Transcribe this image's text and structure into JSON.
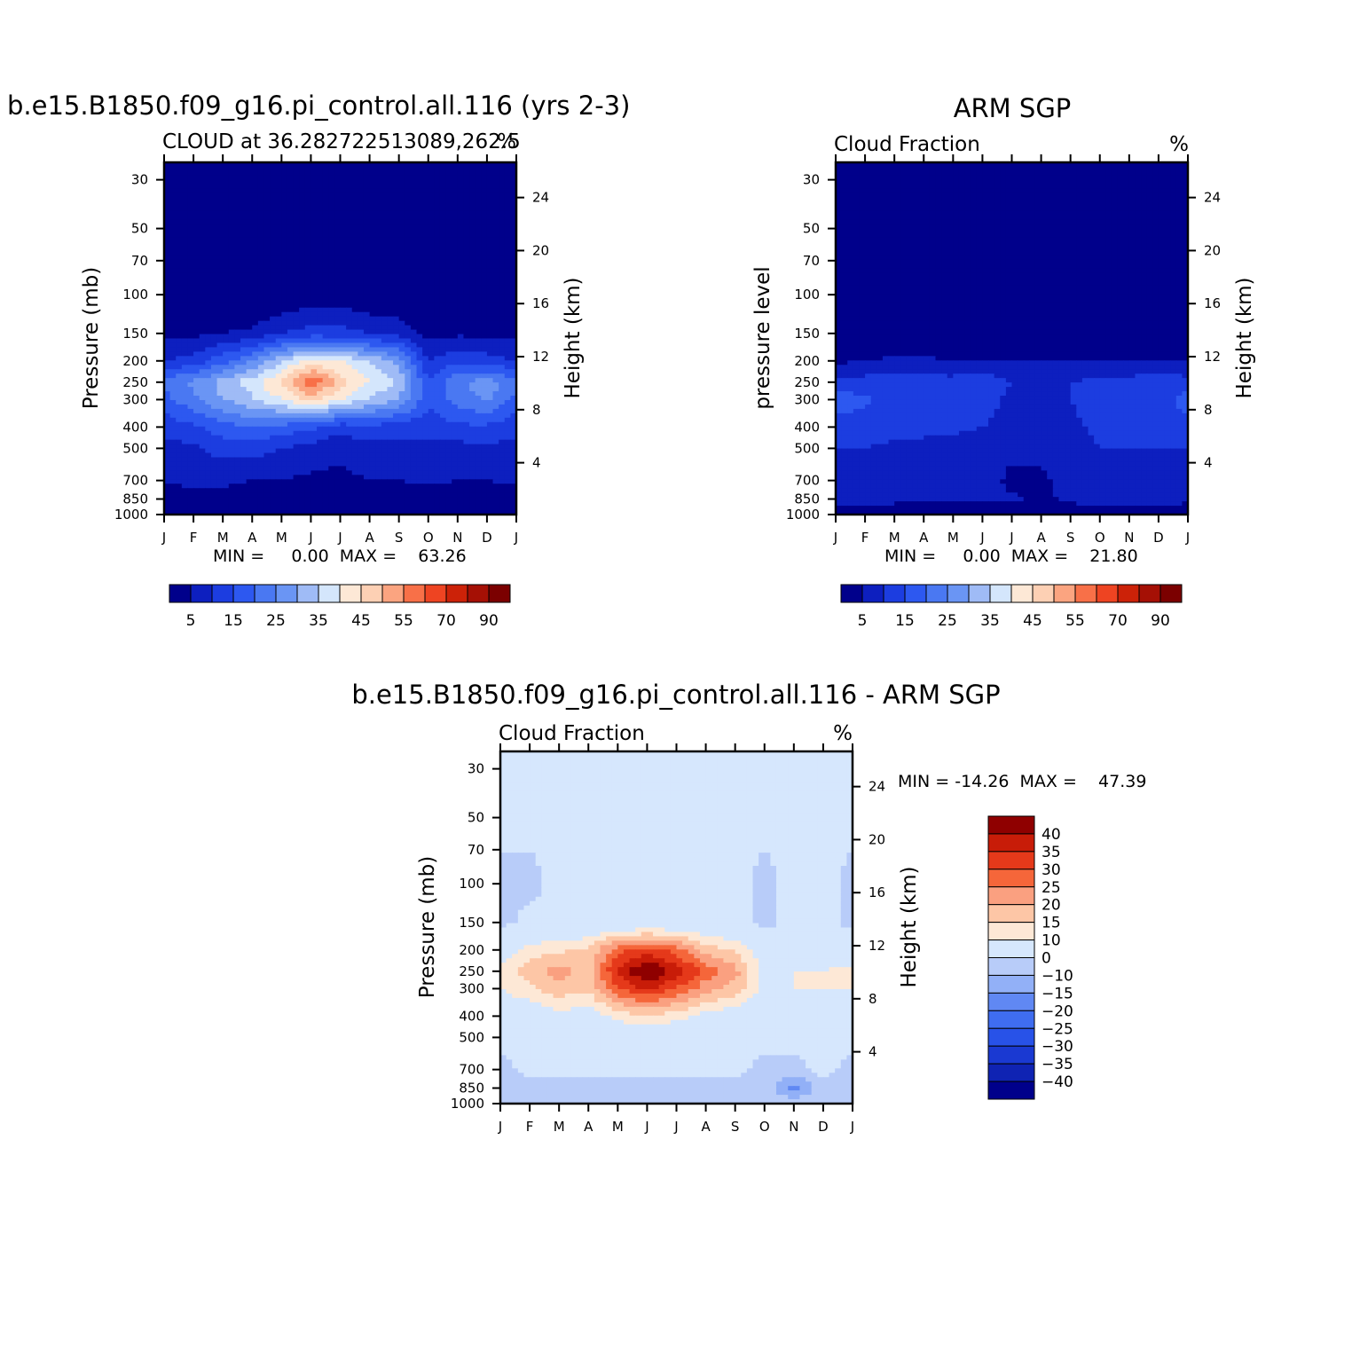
{
  "colors": {
    "cloud_palette": [
      "#00008b",
      "#0d1fbf",
      "#1c3de0",
      "#2d58f0",
      "#4a78f2",
      "#6a95f4",
      "#9fbbf6",
      "#d4e6fc",
      "#fde8d6",
      "#fdd0b4",
      "#fba480",
      "#f87048",
      "#ee4422",
      "#cc2208",
      "#a51005",
      "#7b0000"
    ],
    "diff_palette": [
      "#00008b",
      "#0f23b3",
      "#1a39d2",
      "#2852e8",
      "#3f6df0",
      "#6088f3",
      "#92b0f7",
      "#b8ccf9",
      "#d6e7fd",
      "#fde8d6",
      "#fdc6a6",
      "#faa080",
      "#f5663a",
      "#e5391a",
      "#c81c08",
      "#8f0000"
    ],
    "background": "#00008b"
  },
  "charts": {
    "model": {
      "title": "b.e15.B1850.f09_g16.pi_control.all.116 (yrs 2-3)",
      "subtitle_left": "CLOUD at 36.282722513089,262.5",
      "subtitle_right": "%",
      "ylabel_left": "Pressure (mb)",
      "ylabel_right": "Height (km)",
      "stats": "MIN =     0.00  MAX =    63.26"
    },
    "obs": {
      "title": "ARM SGP",
      "subtitle_left": "Cloud Fraction",
      "subtitle_right": "%",
      "ylabel_left": "pressure level",
      "ylabel_right": "Height (km)",
      "stats": "MIN =     0.00  MAX =    21.80"
    },
    "diff": {
      "title": "b.e15.B1850.f09_g16.pi_control.all.116 - ARM SGP",
      "subtitle_left": "Cloud Fraction",
      "subtitle_right": "%",
      "ylabel_left": "Pressure (mb)",
      "ylabel_right": "Height (km)",
      "stats": "MIN = -14.26  MAX =    47.39"
    }
  },
  "chart_data": [
    {
      "type": "heatmap",
      "title": "b.e15.B1850.f09_g16.pi_control.all.116 (yrs 2-3)",
      "subtitle": "CLOUD at 36.282722513089,262.5",
      "units": "%",
      "xlabel": "",
      "ylabel": "Pressure (mb)",
      "ylabel_right": "Height (km)",
      "x": [
        "J",
        "F",
        "M",
        "A",
        "M",
        "J",
        "J",
        "A",
        "S",
        "O",
        "N",
        "D",
        "J"
      ],
      "pressure_ticks": [
        30,
        50,
        70,
        100,
        150,
        200,
        250,
        300,
        400,
        500,
        700,
        850,
        1000
      ],
      "height_ticks": [
        24,
        20,
        16,
        12,
        8,
        4
      ],
      "y_pressure": [
        30,
        50,
        100,
        150,
        200,
        250,
        300,
        400,
        500,
        700,
        850,
        1000
      ],
      "values": [
        [
          0,
          0,
          0,
          0,
          0,
          0,
          0,
          0,
          0,
          0,
          0,
          0,
          0
        ],
        [
          0,
          0,
          0,
          0,
          0,
          0,
          0,
          0,
          0,
          0,
          0,
          0,
          0
        ],
        [
          0,
          0,
          0,
          0,
          0,
          2,
          2,
          0,
          0,
          0,
          0,
          0,
          0
        ],
        [
          4,
          4,
          5,
          6,
          10,
          12,
          12,
          10,
          8,
          3,
          4,
          4,
          4
        ],
        [
          10,
          12,
          18,
          25,
          34,
          42,
          40,
          34,
          28,
          10,
          14,
          12,
          10
        ],
        [
          22,
          26,
          32,
          38,
          46,
          60,
          48,
          40,
          34,
          16,
          24,
          28,
          22
        ],
        [
          18,
          24,
          30,
          34,
          40,
          46,
          40,
          34,
          30,
          16,
          22,
          26,
          18
        ],
        [
          12,
          14,
          18,
          20,
          18,
          16,
          12,
          14,
          12,
          12,
          14,
          14,
          12
        ],
        [
          8,
          9,
          12,
          12,
          10,
          8,
          6,
          8,
          8,
          8,
          8,
          9,
          8
        ],
        [
          6,
          6,
          6,
          5,
          5,
          4,
          4,
          5,
          5,
          6,
          5,
          5,
          6
        ],
        [
          2,
          3,
          3,
          2,
          2,
          2,
          1,
          2,
          2,
          2,
          2,
          2,
          2
        ],
        [
          1,
          1,
          1,
          1,
          1,
          1,
          1,
          1,
          1,
          1,
          1,
          1,
          1
        ]
      ],
      "min": 0.0,
      "max": 63.26,
      "colorbar_labels": [
        "5",
        "15",
        "25",
        "35",
        "45",
        "55",
        "70",
        "90"
      ]
    },
    {
      "type": "heatmap",
      "title": "ARM SGP",
      "subtitle": "Cloud Fraction",
      "units": "%",
      "xlabel": "",
      "ylabel": "pressure level",
      "ylabel_right": "Height (km)",
      "x": [
        "J",
        "F",
        "M",
        "A",
        "M",
        "J",
        "J",
        "A",
        "S",
        "O",
        "N",
        "D",
        "J"
      ],
      "pressure_ticks": [
        30,
        50,
        70,
        100,
        150,
        200,
        250,
        300,
        400,
        500,
        700,
        850,
        1000
      ],
      "height_ticks": [
        24,
        20,
        16,
        12,
        8,
        4
      ],
      "y_pressure": [
        30,
        50,
        100,
        150,
        200,
        250,
        300,
        400,
        500,
        700,
        850,
        1000
      ],
      "values": [
        [
          0,
          0,
          0,
          0,
          0,
          0,
          0,
          0,
          0,
          0,
          0,
          0,
          0
        ],
        [
          0,
          0,
          0,
          0,
          0,
          0,
          0,
          0,
          0,
          0,
          0,
          0,
          0
        ],
        [
          0,
          0,
          0,
          0,
          0,
          0,
          0,
          0,
          0,
          0,
          0,
          0,
          0
        ],
        [
          0,
          0,
          0,
          0,
          0,
          0,
          0,
          0,
          0,
          0,
          0,
          0,
          0
        ],
        [
          4,
          5,
          6,
          6,
          5,
          5,
          5,
          5,
          5,
          5,
          5,
          5,
          5
        ],
        [
          12,
          12,
          13,
          12,
          12,
          14,
          10,
          8,
          10,
          11,
          12,
          13,
          12
        ],
        [
          18,
          16,
          12,
          13,
          14,
          13,
          8,
          7,
          10,
          12,
          14,
          12,
          18
        ],
        [
          13,
          12,
          12,
          11,
          11,
          10,
          8,
          7,
          9,
          11,
          12,
          13,
          13
        ],
        [
          10,
          10,
          9,
          9,
          8,
          8,
          7,
          6,
          8,
          10,
          10,
          10,
          10
        ],
        [
          8,
          7,
          8,
          8,
          9,
          9,
          3,
          4,
          7,
          8,
          8,
          8,
          8
        ],
        [
          6,
          9,
          6,
          6,
          6,
          6,
          6,
          4,
          6,
          8,
          9,
          7,
          6
        ],
        [
          2,
          2,
          2,
          2,
          2,
          2,
          2,
          2,
          2,
          2,
          2,
          2,
          2
        ]
      ],
      "min": 0.0,
      "max": 21.8,
      "colorbar_labels": [
        "5",
        "15",
        "25",
        "35",
        "45",
        "55",
        "70",
        "90"
      ]
    },
    {
      "type": "heatmap",
      "title": "b.e15.B1850.f09_g16.pi_control.all.116 - ARM SGP",
      "subtitle": "Cloud Fraction",
      "units": "%",
      "xlabel": "",
      "ylabel": "Pressure (mb)",
      "ylabel_right": "Height (km)",
      "x": [
        "J",
        "F",
        "M",
        "A",
        "M",
        "J",
        "J",
        "A",
        "S",
        "O",
        "N",
        "D",
        "J"
      ],
      "pressure_ticks": [
        30,
        50,
        70,
        100,
        150,
        200,
        250,
        300,
        400,
        500,
        700,
        850,
        1000
      ],
      "height_ticks": [
        24,
        20,
        16,
        12,
        8,
        4
      ],
      "y_pressure": [
        30,
        50,
        100,
        150,
        200,
        250,
        300,
        400,
        500,
        700,
        850,
        1000
      ],
      "values": [
        [
          2,
          2,
          2,
          2,
          2,
          2,
          2,
          2,
          2,
          2,
          2,
          2,
          2
        ],
        [
          2,
          2,
          2,
          2,
          2,
          2,
          2,
          2,
          2,
          2,
          2,
          2,
          2
        ],
        [
          -2,
          -2,
          2,
          2,
          2,
          2,
          2,
          2,
          2,
          -2,
          2,
          2,
          -2
        ],
        [
          -2,
          2,
          2,
          2,
          2,
          3,
          3,
          3,
          2,
          -2,
          2,
          2,
          -2
        ],
        [
          5,
          12,
          14,
          16,
          28,
          32,
          28,
          18,
          14,
          6,
          6,
          6,
          5
        ],
        [
          12,
          18,
          22,
          18,
          36,
          47,
          38,
          28,
          22,
          8,
          10,
          10,
          12
        ],
        [
          10,
          14,
          18,
          16,
          30,
          36,
          30,
          22,
          18,
          8,
          10,
          10,
          10
        ],
        [
          4,
          5,
          8,
          6,
          12,
          14,
          12,
          8,
          6,
          4,
          4,
          4,
          4
        ],
        [
          2,
          2,
          2,
          2,
          4,
          5,
          4,
          3,
          2,
          2,
          2,
          2,
          2
        ],
        [
          -2,
          2,
          2,
          2,
          2,
          2,
          2,
          2,
          2,
          -2,
          -2,
          2,
          -2
        ],
        [
          -2,
          -2,
          -2,
          -2,
          -2,
          -2,
          -2,
          -2,
          -2,
          -2,
          -12,
          -2,
          -2
        ],
        [
          -2,
          -2,
          -2,
          -2,
          -2,
          -2,
          -2,
          -2,
          -2,
          -2,
          -2,
          -2,
          -2
        ]
      ],
      "min": -14.26,
      "max": 47.39,
      "colorbar_labels": [
        "40",
        "35",
        "30",
        "25",
        "20",
        "15",
        "10",
        "0",
        "-10",
        "-15",
        "-20",
        "-25",
        "-30",
        "-35",
        "-40"
      ]
    }
  ]
}
